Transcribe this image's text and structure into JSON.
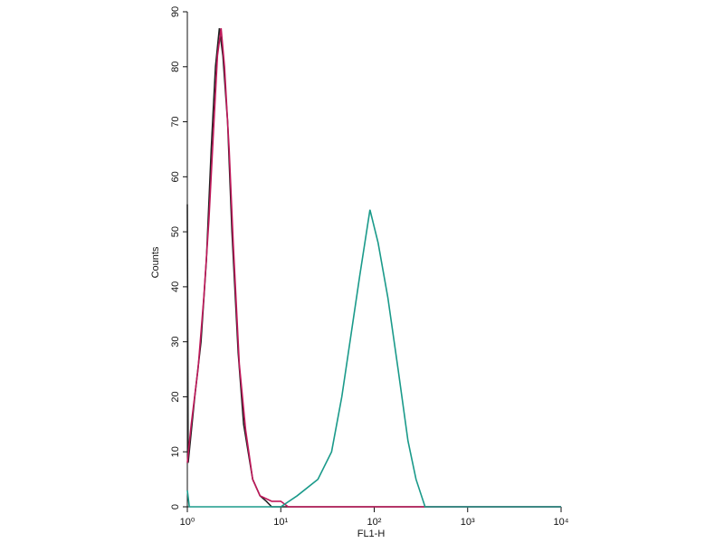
{
  "chart_data": {
    "type": "line",
    "xlabel": "FL1-H",
    "ylabel": "Counts",
    "xscale": "log",
    "xlim": [
      1,
      10000
    ],
    "ylim": [
      0,
      90
    ],
    "xticks": [
      {
        "value": 1,
        "label": "10⁰"
      },
      {
        "value": 10,
        "label": "10¹"
      },
      {
        "value": 100,
        "label": "10²"
      },
      {
        "value": 1000,
        "label": "10³"
      },
      {
        "value": 10000,
        "label": "10⁴"
      }
    ],
    "yticks": [
      0,
      10,
      20,
      30,
      40,
      50,
      60,
      70,
      80,
      90
    ],
    "series": [
      {
        "color": "#222222",
        "x": [
          1,
          1.02,
          1.2,
          1.4,
          1.6,
          1.8,
          2.0,
          2.2,
          2.4,
          2.7,
          3.0,
          3.5,
          4,
          5,
          6,
          7,
          8,
          10,
          20,
          100,
          1000,
          10000
        ],
        "values": [
          55,
          8,
          20,
          30,
          45,
          65,
          80,
          87,
          82,
          70,
          50,
          28,
          15,
          5,
          2,
          1,
          0,
          0,
          0,
          0,
          0,
          0
        ]
      },
      {
        "color": "#c0185a",
        "x": [
          1,
          1.1,
          1.3,
          1.5,
          1.7,
          1.9,
          2.1,
          2.3,
          2.5,
          2.8,
          3.1,
          3.6,
          4.2,
          5,
          6,
          8,
          10,
          12,
          15,
          20,
          50,
          100,
          1000,
          10000
        ],
        "values": [
          8,
          15,
          25,
          38,
          52,
          68,
          82,
          87,
          80,
          65,
          48,
          26,
          14,
          5,
          2,
          1,
          1,
          0,
          0,
          0,
          0,
          0,
          0,
          0
        ]
      },
      {
        "color": "#1a9a8a",
        "x": [
          1,
          1.05,
          10,
          15,
          25,
          35,
          45,
          55,
          70,
          90,
          110,
          140,
          180,
          230,
          280,
          350,
          1000,
          10000
        ],
        "values": [
          3,
          0,
          0,
          2,
          5,
          10,
          20,
          30,
          42,
          54,
          48,
          38,
          25,
          12,
          5,
          0,
          0,
          0
        ]
      }
    ]
  }
}
